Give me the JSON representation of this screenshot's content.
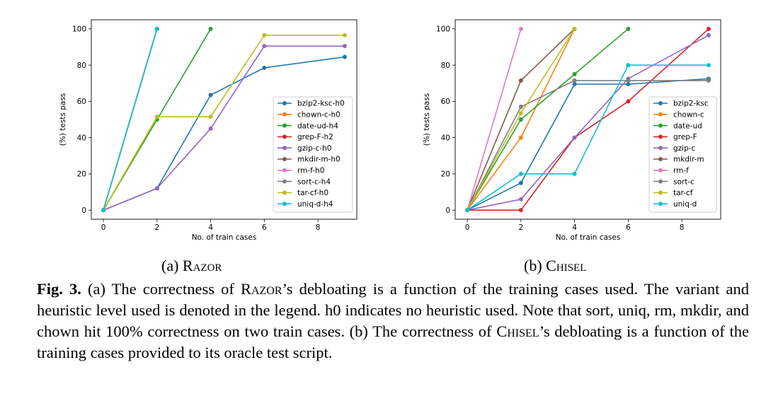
{
  "chart_data": [
    {
      "type": "line",
      "xlabel": "No. of train cases",
      "ylabel": "(%) tests pass",
      "xlim": [
        -0.45,
        9.45
      ],
      "ylim": [
        -5,
        105
      ],
      "xticks": [
        0,
        2,
        4,
        6,
        8
      ],
      "yticks": [
        0,
        20,
        40,
        60,
        80,
        100
      ],
      "legend_position": "center-right",
      "series": [
        {
          "name": "bzip2-ksc-h0",
          "color": "#1f77b4",
          "x": [
            0,
            2,
            4,
            6,
            9
          ],
          "y": [
            0,
            12,
            63.5,
            78.5,
            84.5
          ]
        },
        {
          "name": "chown-c-h0",
          "color": "#ff7f0e",
          "x": [
            0,
            2
          ],
          "y": [
            0,
            100
          ]
        },
        {
          "name": "date-ud-h4",
          "color": "#2ca02c",
          "x": [
            0,
            2,
            4
          ],
          "y": [
            0,
            50,
            100
          ]
        },
        {
          "name": "grep-F-h2",
          "color": "#d62728",
          "x": [
            0,
            2
          ],
          "y": [
            0,
            100
          ]
        },
        {
          "name": "gzip-c-h0",
          "color": "#9467bd",
          "x": [
            0,
            2,
            4,
            6,
            9
          ],
          "y": [
            0,
            12,
            45,
            90.5,
            90.5
          ]
        },
        {
          "name": "mkdir-m-h0",
          "color": "#8c564b",
          "x": [
            0,
            2
          ],
          "y": [
            0,
            100
          ]
        },
        {
          "name": "rm-f-h0",
          "color": "#e377c2",
          "x": [
            0,
            2
          ],
          "y": [
            0,
            100
          ]
        },
        {
          "name": "sort-c-h4",
          "color": "#7f7f7f",
          "x": [
            0,
            2
          ],
          "y": [
            0,
            100
          ]
        },
        {
          "name": "tar-cf-h0",
          "color": "#bcbd22",
          "x": [
            0,
            2,
            4,
            6,
            9
          ],
          "y": [
            0,
            51.5,
            51.5,
            96.5,
            96.5
          ]
        },
        {
          "name": "uniq-d-h4",
          "color": "#17becf",
          "x": [
            0,
            2
          ],
          "y": [
            0,
            100
          ]
        }
      ]
    },
    {
      "type": "line",
      "xlabel": "No. of train cases",
      "ylabel": "(%) tests pass",
      "xlim": [
        -0.45,
        9.45
      ],
      "ylim": [
        -5,
        105
      ],
      "xticks": [
        0,
        2,
        4,
        6,
        8
      ],
      "yticks": [
        0,
        20,
        40,
        60,
        80,
        100
      ],
      "legend_position": "center-right",
      "series": [
        {
          "name": "bzip2-ksc",
          "color": "#1f77b4",
          "x": [
            0,
            2,
            4,
            6,
            9
          ],
          "y": [
            0,
            15,
            69.5,
            69.5,
            72.5
          ]
        },
        {
          "name": "chown-c",
          "color": "#ff7f0e",
          "x": [
            0,
            2,
            4
          ],
          "y": [
            0,
            40,
            100
          ]
        },
        {
          "name": "date-ud",
          "color": "#2ca02c",
          "x": [
            0,
            2,
            4,
            6
          ],
          "y": [
            0,
            50,
            75,
            100
          ]
        },
        {
          "name": "grep-F",
          "color": "#d62728",
          "x": [
            0,
            2,
            4,
            6,
            9
          ],
          "y": [
            0,
            0,
            40,
            60,
            100
          ]
        },
        {
          "name": "gzip-c",
          "color": "#9467bd",
          "x": [
            0,
            2,
            4,
            6,
            9
          ],
          "y": [
            0,
            6,
            40,
            72.5,
            96.5
          ]
        },
        {
          "name": "mkdir-m",
          "color": "#8c564b",
          "x": [
            0,
            2,
            4
          ],
          "y": [
            0,
            71.5,
            100
          ]
        },
        {
          "name": "rm-f",
          "color": "#e377c2",
          "x": [
            0,
            2
          ],
          "y": [
            0,
            100
          ]
        },
        {
          "name": "sort-c",
          "color": "#7f7f7f",
          "x": [
            0,
            2,
            4,
            6,
            9
          ],
          "y": [
            0,
            57,
            71.5,
            71.5,
            71.5
          ]
        },
        {
          "name": "tar-cf",
          "color": "#bcbd22",
          "x": [
            0,
            2,
            4
          ],
          "y": [
            0,
            53.5,
            100
          ]
        },
        {
          "name": "uniq-d",
          "color": "#17becf",
          "x": [
            0,
            2,
            4,
            6,
            9
          ],
          "y": [
            0,
            20,
            20,
            80,
            80
          ]
        }
      ]
    }
  ],
  "sub_captions": {
    "a": {
      "prefix": "(a) ",
      "name": "Razor"
    },
    "b": {
      "prefix": "(b) ",
      "name": "Chisel"
    }
  },
  "figure_caption": {
    "label": "Fig. 3.",
    "part1": " (a) The correctness of ",
    "name1": "Razor",
    "part2": "’s debloating is a function of the training cases used. The variant and heuristic level used is denoted in the legend. h0 indicates no heuristic used. Note that sort, uniq, rm, mkdir, and chown hit 100% correctness on two train cases. (b) The correctness of ",
    "name2": "Chisel",
    "part3": "’s debloating is a function of the training cases provided to its oracle test script."
  }
}
